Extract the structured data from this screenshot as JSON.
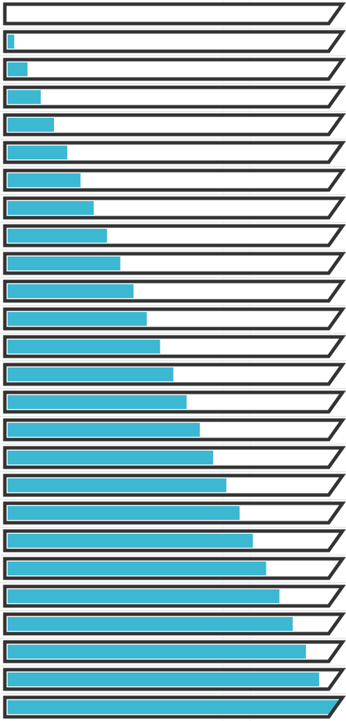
{
  "progress_bars": {
    "fill_color": "#3cb8d2",
    "border_color": "#333333",
    "track_color": "#ffffff",
    "separator_color": "#dcdcdc",
    "levels": [
      0,
      0.02,
      0.06,
      0.1,
      0.14,
      0.18,
      0.22,
      0.26,
      0.3,
      0.34,
      0.38,
      0.42,
      0.46,
      0.5,
      0.54,
      0.58,
      0.62,
      0.66,
      0.7,
      0.74,
      0.78,
      0.82,
      0.86,
      0.9,
      0.94,
      1.0
    ]
  }
}
